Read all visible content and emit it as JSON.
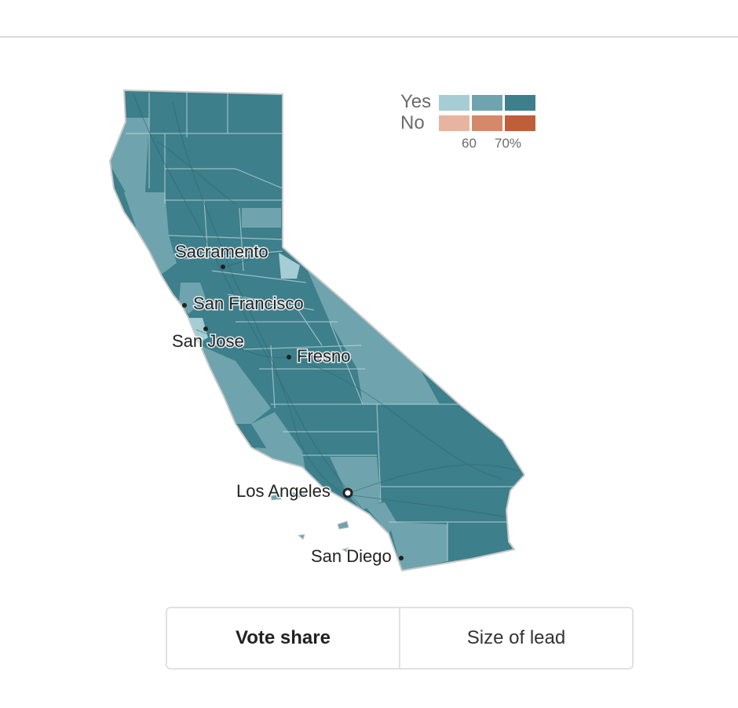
{
  "legend": {
    "yes_label": "Yes",
    "no_label": "No",
    "ticks": [
      "60",
      "70%"
    ],
    "yes_colors": [
      "#a6cdd4",
      "#6fa4ae",
      "#3d7f8b"
    ],
    "no_colors": [
      "#e8b4a0",
      "#d48a68",
      "#bf5f3a"
    ]
  },
  "map": {
    "state": "California",
    "base_color": "#3d7f8b",
    "mid_color": "#6fa4ae",
    "light_color": "#a6cdd4",
    "cities": [
      {
        "name": "Sacramento"
      },
      {
        "name": "San Francisco"
      },
      {
        "name": "San Jose"
      },
      {
        "name": "Fresno"
      },
      {
        "name": "Los Angeles"
      },
      {
        "name": "San Diego"
      }
    ]
  },
  "toggle": {
    "options": [
      {
        "label": "Vote share",
        "active": true
      },
      {
        "label": "Size of lead",
        "active": false
      }
    ]
  }
}
